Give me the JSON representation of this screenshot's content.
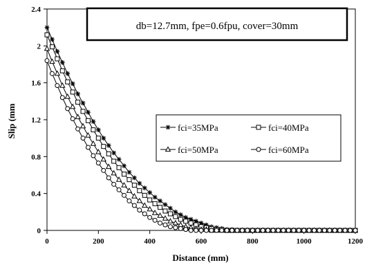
{
  "chart_data": {
    "type": "line",
    "title": "",
    "annotation": "db=12.7mm, fpe=0.6fpu, cover=30mm",
    "xlabel": "Distance (mm)",
    "ylabel": "Slip (mm",
    "xlim": [
      0,
      1200
    ],
    "ylim": [
      0,
      2.4
    ],
    "x_ticks": [
      "0",
      "200",
      "400",
      "600",
      "800",
      "1000",
      "1200"
    ],
    "y_ticks": [
      "0",
      "0.4",
      "0.8",
      "1.2",
      "1.6",
      "2",
      "2.4"
    ],
    "grid": false,
    "legend_position": "right",
    "x": [
      0,
      20,
      40,
      60,
      80,
      100,
      120,
      140,
      160,
      180,
      200,
      220,
      240,
      260,
      280,
      300,
      320,
      340,
      360,
      380,
      400,
      420,
      440,
      460,
      480,
      500,
      520,
      540,
      560,
      580,
      600,
      620,
      640,
      660,
      680,
      700,
      720,
      740,
      760,
      780,
      800,
      820,
      840,
      860,
      880,
      900,
      920,
      940,
      960,
      980,
      1000,
      1020,
      1040,
      1060,
      1080,
      1100,
      1120,
      1140,
      1160,
      1180,
      1200
    ],
    "series": [
      {
        "name": "fci=35MPa",
        "marker": "asterisk",
        "values": [
          2.2,
          2.07,
          1.94,
          1.82,
          1.7,
          1.59,
          1.48,
          1.38,
          1.28,
          1.18,
          1.09,
          1.0,
          0.92,
          0.84,
          0.77,
          0.7,
          0.63,
          0.57,
          0.51,
          0.46,
          0.41,
          0.36,
          0.32,
          0.28,
          0.24,
          0.2,
          0.17,
          0.14,
          0.12,
          0.1,
          0.08,
          0.06,
          0.04,
          0.03,
          0.02,
          0.01,
          0.01,
          0.0,
          0.0,
          0.0,
          0.0,
          0.0,
          0.0,
          0.0,
          0.0,
          0.0,
          0.0,
          0.0,
          0.0,
          0.0,
          0.0,
          0.0,
          0.0,
          0.0,
          0.0,
          0.0,
          0.0,
          0.0,
          0.0,
          0.0,
          0.0
        ]
      },
      {
        "name": "fci=40MPa",
        "marker": "square",
        "values": [
          2.12,
          1.99,
          1.86,
          1.73,
          1.61,
          1.5,
          1.39,
          1.29,
          1.19,
          1.09,
          1.0,
          0.91,
          0.83,
          0.75,
          0.68,
          0.61,
          0.55,
          0.49,
          0.43,
          0.38,
          0.33,
          0.29,
          0.25,
          0.21,
          0.18,
          0.15,
          0.12,
          0.1,
          0.08,
          0.06,
          0.04,
          0.03,
          0.02,
          0.01,
          0.01,
          0.0,
          0.0,
          0.0,
          0.0,
          0.0,
          0.0,
          0.0,
          0.0,
          0.0,
          0.0,
          0.0,
          0.0,
          0.0,
          0.0,
          0.0,
          0.0,
          0.0,
          0.0,
          0.0,
          0.0,
          0.0,
          0.0,
          0.0,
          0.0,
          0.0,
          0.0
        ]
      },
      {
        "name": "fci=50MPa",
        "marker": "triangle",
        "values": [
          1.97,
          1.83,
          1.7,
          1.57,
          1.45,
          1.34,
          1.23,
          1.13,
          1.03,
          0.94,
          0.85,
          0.77,
          0.69,
          0.62,
          0.55,
          0.49,
          0.43,
          0.37,
          0.32,
          0.27,
          0.23,
          0.19,
          0.16,
          0.13,
          0.1,
          0.08,
          0.06,
          0.04,
          0.03,
          0.02,
          0.01,
          0.01,
          0.0,
          0.0,
          0.0,
          0.0,
          0.0,
          0.0,
          0.0,
          0.0,
          0.0,
          0.0,
          0.0,
          0.0,
          0.0,
          0.0,
          0.0,
          0.0,
          0.0,
          0.0,
          0.0,
          0.0,
          0.0,
          0.0,
          0.0,
          0.0,
          0.0,
          0.0,
          0.0,
          0.0,
          0.0
        ]
      },
      {
        "name": "fci=60MPa",
        "marker": "circle",
        "values": [
          1.84,
          1.7,
          1.57,
          1.44,
          1.32,
          1.21,
          1.1,
          1.0,
          0.9,
          0.81,
          0.73,
          0.65,
          0.57,
          0.5,
          0.44,
          0.38,
          0.32,
          0.27,
          0.22,
          0.18,
          0.14,
          0.11,
          0.08,
          0.06,
          0.04,
          0.03,
          0.02,
          0.01,
          0.0,
          0.0,
          0.0,
          0.0,
          0.0,
          0.0,
          0.0,
          0.0,
          0.0,
          0.0,
          0.0,
          0.0,
          0.0,
          0.0,
          0.0,
          0.0,
          0.0,
          0.0,
          0.0,
          0.0,
          0.0,
          0.0,
          0.0,
          0.0,
          0.0,
          0.0,
          0.0,
          0.0,
          0.0,
          0.0,
          0.0,
          0.0,
          0.0
        ]
      }
    ]
  }
}
